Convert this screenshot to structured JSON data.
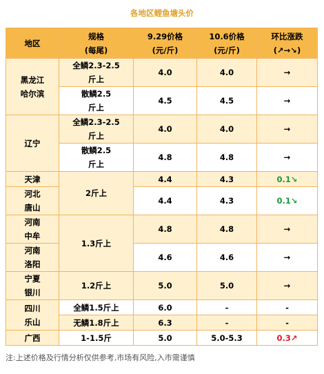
{
  "title": "各地区鲤鱼塘头价",
  "headers": {
    "region": "地区",
    "spec_line1": "规格",
    "spec_line2": "(每尾)",
    "price1_line1": "9.29价格",
    "price1_line2": "(元/斤)",
    "price2_line1": "10.6价格",
    "price2_line2": "(元/斤)",
    "trend_line1": "环比涨跌",
    "trend_line2": "(↗→↘)"
  },
  "rows": [
    {
      "region_l1": "黑龙江",
      "region_l2": "哈尔滨",
      "spec_l1": "全鳞2.3-2.5",
      "spec_l2": "斤上",
      "p1": "4.0",
      "p2": "4.0",
      "trend": "→"
    },
    {
      "spec_l1": "散鳞2.5",
      "spec_l2": "斤上",
      "p1": "4.5",
      "p2": "4.5",
      "trend": "→"
    },
    {
      "region_l1": "辽宁",
      "spec_l1": "全鳞2.3-2.5",
      "spec_l2": "斤上",
      "p1": "4.0",
      "p2": "4.0",
      "trend": "→"
    },
    {
      "spec_l1": "散鳞2.5",
      "spec_l2": "斤上",
      "p1": "4.8",
      "p2": "4.8",
      "trend": "→"
    },
    {
      "region_l1": "天津",
      "spec_l1": "2斤上",
      "p1": "4.4",
      "p2": "4.3",
      "trend": "0.1↘"
    },
    {
      "region_l1": "河北",
      "region_l2": "唐山",
      "p1": "4.4",
      "p2": "4.3",
      "trend": "0.1↘"
    },
    {
      "region_l1": "河南",
      "region_l2": "中牟",
      "spec_l1": "1.3斤上",
      "p1": "4.8",
      "p2": "4.8",
      "trend": "→"
    },
    {
      "region_l1": "河南",
      "region_l2": "洛阳",
      "p1": "4.6",
      "p2": "4.6",
      "trend": "→"
    },
    {
      "region_l1": "宁夏",
      "region_l2": "银川",
      "spec_l1": "1.2斤上",
      "p1": "5.0",
      "p2": "5.0",
      "trend": "→"
    },
    {
      "region_l1": "四川",
      "region_l2": "乐山",
      "spec_l1": "全鳞1.5斤上",
      "p1": "6.0",
      "p2": "-",
      "trend": "-"
    },
    {
      "spec_l1": "无鳞1.8斤上",
      "p1": "6.3",
      "p2": "-",
      "trend": "-"
    },
    {
      "region_l1": "广西",
      "spec_l1": "1-1.5斤",
      "p1": "5.0",
      "p2": "5.0-5.3",
      "trend": "0.3↗"
    }
  ],
  "note": "注:上述价格及行情分析仅供参考,市场有风险,入市需谨慎",
  "colors": {
    "header_bg": "#f7b84a",
    "tint_bg": "#fff1d0",
    "border": "#f2b35b",
    "title": "#e0a22a",
    "down": "#1a9a3e",
    "up": "#e01a2a"
  }
}
